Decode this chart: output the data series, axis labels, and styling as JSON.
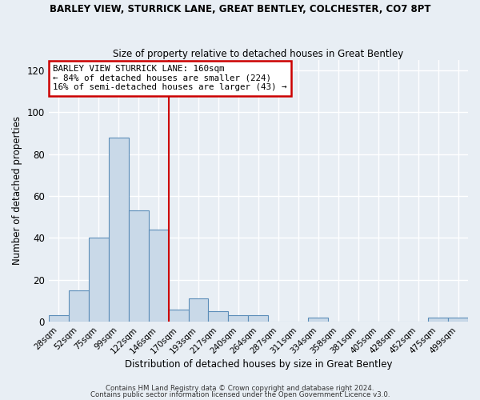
{
  "title": "BARLEY VIEW, STURRICK LANE, GREAT BENTLEY, COLCHESTER, CO7 8PT",
  "subtitle": "Size of property relative to detached houses in Great Bentley",
  "xlabel": "Distribution of detached houses by size in Great Bentley",
  "ylabel": "Number of detached properties",
  "bar_labels": [
    "28sqm",
    "52sqm",
    "75sqm",
    "99sqm",
    "122sqm",
    "146sqm",
    "170sqm",
    "193sqm",
    "217sqm",
    "240sqm",
    "264sqm",
    "287sqm",
    "311sqm",
    "334sqm",
    "358sqm",
    "381sqm",
    "405sqm",
    "428sqm",
    "452sqm",
    "475sqm",
    "499sqm"
  ],
  "bar_values": [
    3,
    15,
    40,
    88,
    53,
    44,
    6,
    11,
    5,
    3,
    3,
    0,
    0,
    2,
    0,
    0,
    0,
    0,
    0,
    2,
    2
  ],
  "bar_color": "#c9d9e8",
  "bar_edge_color": "#5b8db8",
  "ylim": [
    0,
    125
  ],
  "yticks": [
    0,
    20,
    40,
    60,
    80,
    100,
    120
  ],
  "property_line_label": "BARLEY VIEW STURRICK LANE: 160sqm",
  "annotation_line1": "← 84% of detached houses are smaller (224)",
  "annotation_line2": "16% of semi-detached houses are larger (43) →",
  "annotation_box_color": "#ffffff",
  "annotation_box_edge": "#cc0000",
  "line_color": "#cc0000",
  "footer1": "Contains HM Land Registry data © Crown copyright and database right 2024.",
  "footer2": "Contains public sector information licensed under the Open Government Licence v3.0.",
  "background_color": "#e8eef4",
  "grid_color": "#ffffff",
  "title_fontsize": 8.5,
  "subtitle_fontsize": 8.5
}
